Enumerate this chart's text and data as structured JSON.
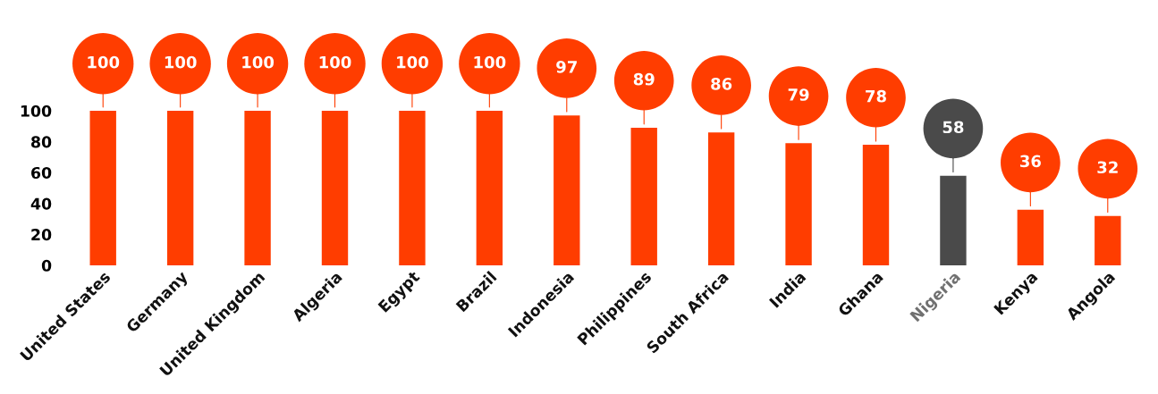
{
  "chart_data": {
    "type": "bar",
    "categories": [
      "United States",
      "Germany",
      "United Kingdom",
      "Algeria",
      "Egypt",
      "Brazil",
      "Indonesia",
      "Philippines",
      "South Africa",
      "India",
      "Ghana",
      "Nigeria",
      "Kenya",
      "Angola"
    ],
    "values": [
      100,
      100,
      100,
      100,
      100,
      100,
      97,
      89,
      86,
      79,
      78,
      58,
      36,
      32
    ],
    "colors": [
      "#ff3d00",
      "#ff3d00",
      "#ff3d00",
      "#ff3d00",
      "#ff3d00",
      "#ff3d00",
      "#ff3d00",
      "#ff3d00",
      "#ff3d00",
      "#ff3d00",
      "#ff3d00",
      "#4a4a4a",
      "#ff3d00",
      "#ff3d00"
    ],
    "ylim": [
      0,
      100
    ],
    "yticks": [
      0,
      20,
      40,
      60,
      80,
      100
    ],
    "grid": false,
    "data_labels": true
  }
}
